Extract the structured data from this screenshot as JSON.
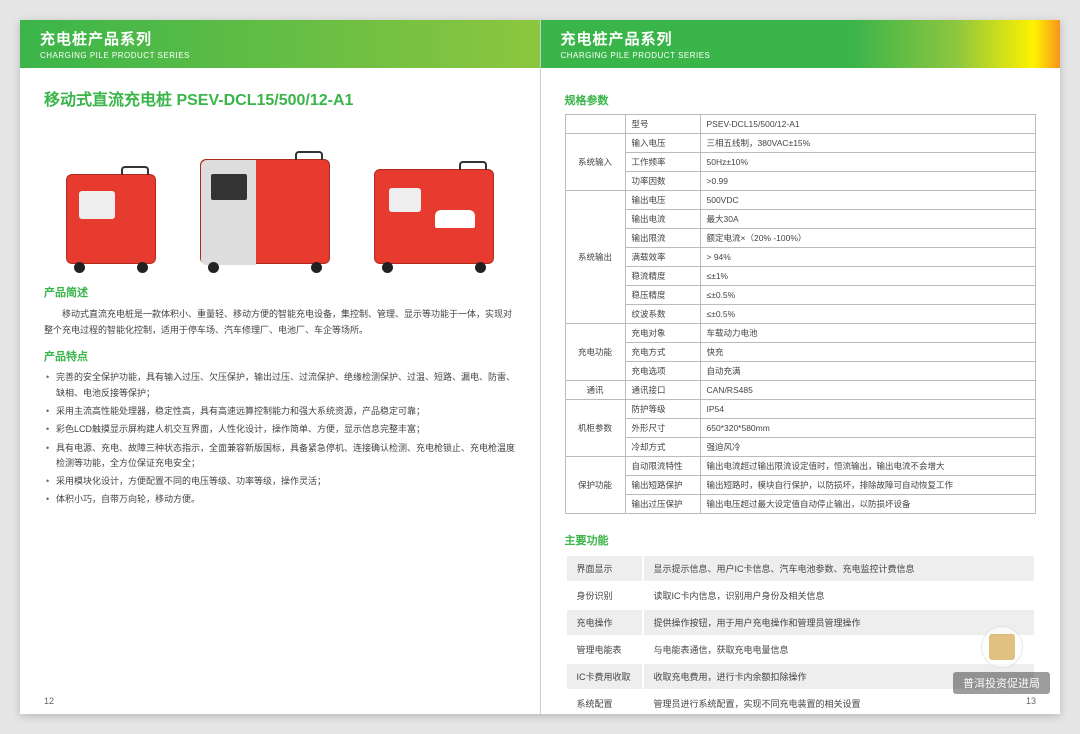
{
  "header": {
    "title_cn": "充电桩产品系列",
    "title_en": "CHARGING PILE PRODUCT SERIES"
  },
  "left": {
    "product_title": "移动式直流充电桩 PSEV-DCL15/500/12-A1",
    "desc_heading": "产品简述",
    "desc_text": "移动式直流充电桩是一款体积小、重量轻、移动方便的智能充电设备，集控制、管理、显示等功能于一体，实现对整个充电过程的智能化控制，适用于停车场、汽车修理厂、电池厂、车企等场所。",
    "features_heading": "产品特点",
    "features": [
      "完善的安全保护功能，具有输入过压、欠压保护，输出过压、过流保护、绝缘检测保护、过温、短路、漏电、防雷、缺相、电池反接等保护；",
      "采用主流高性能处理器，稳定性高，具有高速远算控制能力和强大系统资源，产品稳定可靠；",
      "彩色LCD触摸显示屏构建人机交互界面，人性化设计，操作简单、方便，显示信息完整丰富；",
      "具有电源、充电、故障三种状态指示，全面兼容新版国标，具备紧急停机、连接确认检测、充电枪锁止、充电枪温度检测等功能，全方位保证充电安全；",
      "采用模块化设计，方便配置不同的电压等级、功率等级，操作灵活；",
      "体积小巧，自带万向轮，移动方便。"
    ],
    "page_num": "12"
  },
  "right": {
    "specs_heading": "规格参数",
    "specs": [
      {
        "group": "",
        "rows": [
          [
            "型号",
            "PSEV-DCL15/500/12-A1"
          ]
        ]
      },
      {
        "group": "系统输入",
        "rows": [
          [
            "输入电压",
            "三相五线制，380VAC±15%"
          ],
          [
            "工作频率",
            "50Hz±10%"
          ],
          [
            "功率因数",
            ">0.99"
          ]
        ]
      },
      {
        "group": "系统输出",
        "rows": [
          [
            "输出电压",
            "500VDC"
          ],
          [
            "输出电流",
            "最大30A"
          ],
          [
            "输出限流",
            "额定电流×（20% -100%）"
          ],
          [
            "满载效率",
            "> 94%"
          ],
          [
            "稳流精度",
            "≤±1%"
          ],
          [
            "稳压精度",
            "≤±0.5%"
          ],
          [
            "纹波系数",
            "≤±0.5%"
          ]
        ]
      },
      {
        "group": "充电功能",
        "rows": [
          [
            "充电对象",
            "车载动力电池"
          ],
          [
            "充电方式",
            "快充"
          ],
          [
            "充电选项",
            "自动充满"
          ]
        ]
      },
      {
        "group": "通讯",
        "rows": [
          [
            "通讯接口",
            "CAN/RS485"
          ]
        ]
      },
      {
        "group": "机柜参数",
        "rows": [
          [
            "防护等级",
            "IP54"
          ],
          [
            "外形尺寸",
            "650*320*580mm"
          ],
          [
            "冷却方式",
            "强迫风冷"
          ]
        ]
      },
      {
        "group": "保护功能",
        "rows": [
          [
            "自动限流特性",
            "输出电流超过输出限流设定值时，恒流输出，输出电流不会增大"
          ],
          [
            "输出短路保护",
            "输出短路时，模块自行保护，以防损坏，排除故障可自动恢复工作"
          ],
          [
            "输出过压保护",
            "输出电压超过最大设定值自动停止输出，以防损坏设备"
          ]
        ]
      }
    ],
    "functions_heading": "主要功能",
    "functions": [
      [
        "界面显示",
        "显示提示信息、用户IC卡信息、汽车电池参数、充电监控计费信息"
      ],
      [
        "身份识别",
        "读取IC卡内信息，识别用户身份及相关信息"
      ],
      [
        "充电操作",
        "提供操作按钮，用于用户充电操作和管理员管理操作"
      ],
      [
        "管理电能表",
        "与电能表通信，获取充电电量信息"
      ],
      [
        "IC卡费用收取",
        "收取充电费用，进行卡内余额扣除操作"
      ],
      [
        "系统配置",
        "管理员进行系统配置，实现不同充电装置的相关设置"
      ]
    ],
    "page_num": "13"
  },
  "watermark": "普洱投资促进局",
  "colors": {
    "green": "#3ab54a",
    "charger_red": "#e63b2e"
  }
}
